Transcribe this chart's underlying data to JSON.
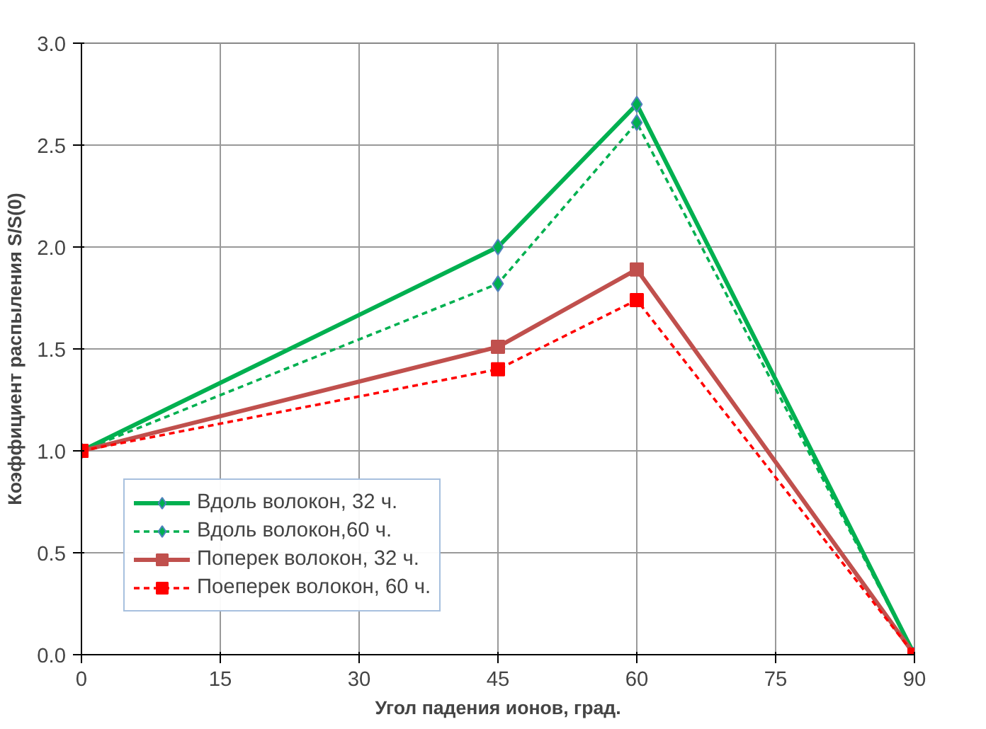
{
  "chart_data": {
    "type": "line",
    "xlabel": "Угол падения ионов, град.",
    "ylabel": "Коэффициент распыления S/S(0)",
    "x": [
      0,
      45,
      60,
      90
    ],
    "series": [
      {
        "name": "Вдоль волокон, 32 ч.",
        "color": "#00b050",
        "values": [
          1.0,
          2.0,
          2.7,
          0.0
        ],
        "marker": "diamond",
        "line_style": "solid"
      },
      {
        "name": "Вдоль волокон,60 ч.",
        "color": "#00b050",
        "values": [
          1.0,
          1.82,
          2.61,
          0.0
        ],
        "marker": "diamond",
        "line_style": "dashed"
      },
      {
        "name": "Поперек волокон, 32 ч.",
        "color": "#c0504d",
        "values": [
          1.0,
          1.51,
          1.89,
          0.0
        ],
        "marker": "square",
        "line_style": "solid"
      },
      {
        "name": "Поеперек волокон, 60 ч.",
        "color": "#ff0000",
        "values": [
          1.0,
          1.4,
          1.74,
          0.0
        ],
        "marker": "square",
        "line_style": "dashed"
      }
    ],
    "xlim": [
      0,
      90
    ],
    "xticks": [
      0,
      15,
      30,
      45,
      60,
      75,
      90
    ],
    "ylim": [
      0,
      3
    ],
    "yticks": [
      {
        "value": 0,
        "label": "0.0"
      },
      {
        "value": 0.5,
        "label": "0.5"
      },
      {
        "value": 1,
        "label": "1.0"
      },
      {
        "value": 1.5,
        "label": "1.5"
      },
      {
        "value": 2,
        "label": "2.0"
      },
      {
        "value": 2.5,
        "label": "2.5"
      },
      {
        "value": 3,
        "label": "3.0"
      }
    ],
    "grid": true,
    "legend": "bottom left"
  }
}
